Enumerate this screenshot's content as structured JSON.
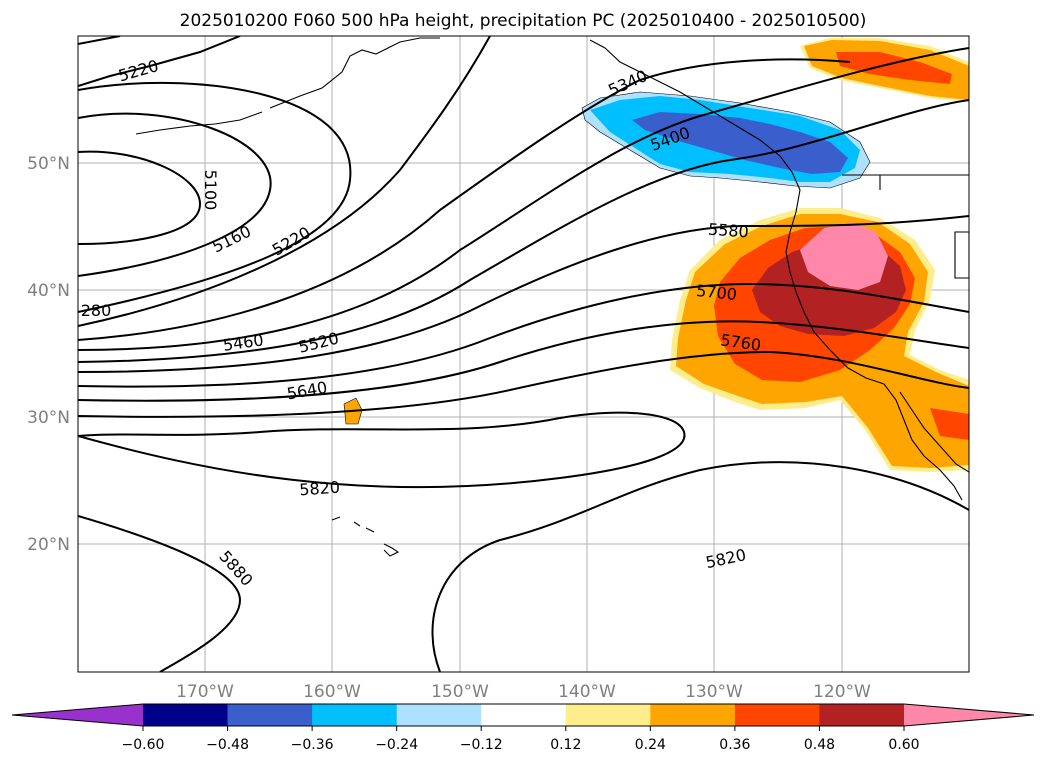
{
  "title": "2025010200 F060 500 hPa height, precipitation PC (2025010400 - 2025010500)",
  "map": {
    "lat_labels": [
      "50°N",
      "40°N",
      "30°N",
      "20°N"
    ],
    "lon_labels": [
      "170°W",
      "160°W",
      "150°W",
      "140°W",
      "130°W",
      "120°W"
    ],
    "contour_labels": [
      "5220",
      "5100",
      "5160",
      "5220",
      "280",
      "5460",
      "5520",
      "5640",
      "5820",
      "5880",
      "5820",
      "5400",
      "5340",
      "5580",
      "5700",
      "5760"
    ]
  },
  "colorbar": {
    "ticks": [
      "−0.60",
      "−0.48",
      "−0.36",
      "−0.24",
      "−0.12",
      "0.12",
      "0.24",
      "0.36",
      "0.48",
      "0.60"
    ],
    "colors": [
      "#9932CC",
      "#00008B",
      "#3A5FCD",
      "#00BFFF",
      "#ADE1FF",
      "#FFFFFF",
      "#FFEC8B",
      "#FFA500",
      "#FF4500",
      "#B22222",
      "#FF88AA"
    ]
  }
}
